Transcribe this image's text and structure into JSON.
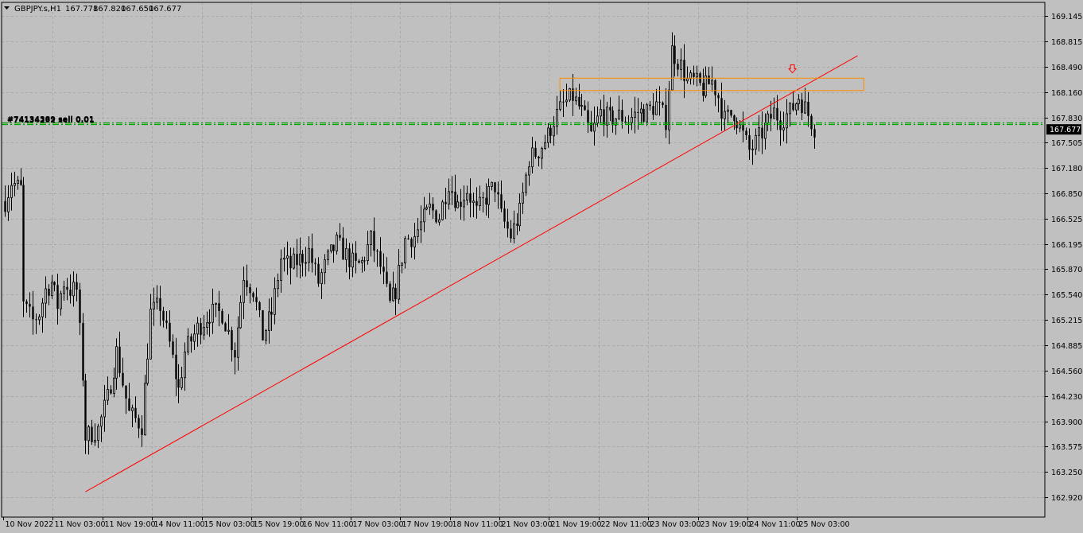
{
  "window": {
    "symbol_title": "GBPJPY.s,H1",
    "ohlc": [
      "167.778",
      "167.820",
      "167.650",
      "167.677"
    ],
    "menu_icon": "triangle-down-icon"
  },
  "colors": {
    "background": "#c0c0c0",
    "grid": "#a8a8a8",
    "candle": "#000000",
    "trendline": "#ff0000",
    "zone": "#ff8c00",
    "order_line": "#00a000",
    "arrow": "#ff0000",
    "price_tag_bg": "#000000",
    "price_tag_text": "#ffffff"
  },
  "chart_data": {
    "type": "candlestick",
    "title": "GBPJPY.s,H1",
    "timeframe": "H1",
    "ylim": [
      162.8,
      169.3
    ],
    "y_ticks": [
      "169.145",
      "168.815",
      "168.490",
      "168.160",
      "167.830",
      "167.505",
      "167.180",
      "166.850",
      "166.525",
      "166.195",
      "165.870",
      "165.540",
      "165.215",
      "164.885",
      "164.560",
      "164.230",
      "163.900",
      "163.575",
      "163.250",
      "162.920"
    ],
    "x_ticks": [
      "10 Nov 2022",
      "11 Nov 03:00",
      "11 Nov 19:00",
      "14 Nov 11:00",
      "15 Nov 03:00",
      "15 Nov 19:00",
      "16 Nov 11:00",
      "17 Nov 03:00",
      "17 Nov 19:00",
      "18 Nov 11:00",
      "21 Nov 03:00",
      "21 Nov 19:00",
      "22 Nov 11:00",
      "23 Nov 03:00",
      "23 Nov 19:00",
      "24 Nov 11:00",
      "25 Nov 03:00"
    ],
    "bar_count": 262,
    "current_price": "167.677",
    "current_price_value": 167.677,
    "series": [
      {
        "name": "price path (approx closes)",
        "anchor_bar_close": [
          [
            0,
            166.75
          ],
          [
            2,
            167.0
          ],
          [
            5,
            166.9
          ],
          [
            6,
            165.4
          ],
          [
            9,
            165.2
          ],
          [
            11,
            165.3
          ],
          [
            13,
            165.6
          ],
          [
            15,
            165.7
          ],
          [
            17,
            165.4
          ],
          [
            19,
            165.7
          ],
          [
            21,
            165.6
          ],
          [
            23,
            165.6
          ],
          [
            25,
            164.5
          ],
          [
            26,
            163.7
          ],
          [
            30,
            163.8
          ],
          [
            33,
            164.2
          ],
          [
            36,
            164.8
          ],
          [
            40,
            164.0
          ],
          [
            44,
            163.85
          ],
          [
            47,
            165.3
          ],
          [
            50,
            165.4
          ],
          [
            53,
            164.9
          ],
          [
            56,
            164.3
          ],
          [
            58,
            164.8
          ],
          [
            62,
            165.1
          ],
          [
            66,
            165.3
          ],
          [
            70,
            165.3
          ],
          [
            74,
            164.8
          ],
          [
            77,
            165.8
          ],
          [
            80,
            165.6
          ],
          [
            83,
            165.0
          ],
          [
            86,
            165.3
          ],
          [
            89,
            166.0
          ],
          [
            92,
            165.9
          ],
          [
            95,
            166.0
          ],
          [
            98,
            166.1
          ],
          [
            101,
            165.7
          ],
          [
            104,
            166.0
          ],
          [
            107,
            166.2
          ],
          [
            110,
            166.05
          ],
          [
            113,
            165.9
          ],
          [
            115,
            165.95
          ],
          [
            118,
            166.25
          ],
          [
            121,
            165.9
          ],
          [
            124,
            165.4
          ],
          [
            126,
            165.6
          ],
          [
            129,
            166.25
          ],
          [
            132,
            166.3
          ],
          [
            134,
            166.45
          ],
          [
            137,
            166.65
          ],
          [
            140,
            166.55
          ],
          [
            143,
            167.0
          ],
          [
            146,
            166.7
          ],
          [
            149,
            166.9
          ],
          [
            152,
            166.6
          ],
          [
            155,
            166.8
          ],
          [
            158,
            166.95
          ],
          [
            160,
            166.55
          ],
          [
            163,
            166.3
          ],
          [
            166,
            166.6
          ],
          [
            169,
            167.3
          ],
          [
            172,
            167.4
          ],
          [
            175,
            167.6
          ],
          [
            177,
            167.8
          ],
          [
            180,
            168.0
          ],
          [
            183,
            168.1
          ],
          [
            186,
            167.9
          ],
          [
            189,
            167.6
          ],
          [
            192,
            167.9
          ],
          [
            195,
            167.8
          ],
          [
            198,
            167.85
          ],
          [
            201,
            167.8
          ],
          [
            204,
            167.9
          ],
          [
            207,
            167.9
          ],
          [
            210,
            168.0
          ],
          [
            213,
            167.8
          ],
          [
            215,
            168.7
          ],
          [
            218,
            168.5
          ],
          [
            220,
            168.3
          ],
          [
            222,
            168.3
          ],
          [
            225,
            168.2
          ],
          [
            228,
            168.3
          ],
          [
            230,
            168.1
          ],
          [
            232,
            167.8
          ],
          [
            235,
            167.9
          ],
          [
            238,
            167.6
          ],
          [
            240,
            167.4
          ],
          [
            242,
            167.5
          ],
          [
            245,
            167.7
          ],
          [
            248,
            167.9
          ],
          [
            250,
            167.8
          ],
          [
            253,
            167.9
          ],
          [
            256,
            168.1
          ],
          [
            258,
            167.95
          ],
          [
            261,
            167.7
          ]
        ]
      }
    ],
    "annotations": [
      {
        "type": "trendline",
        "from": {
          "bar": 26,
          "price": 162.99
        },
        "to": {
          "bar": 275,
          "price": 168.63
        },
        "color": "#ff0000"
      },
      {
        "type": "rectangle",
        "price_top": 168.34,
        "price_bottom": 168.18,
        "bar_start": 179,
        "bar_end": 277,
        "color": "#ff8c00"
      },
      {
        "type": "arrow",
        "direction": "down",
        "bar": 254,
        "price": 168.45,
        "icon": "down-arrow-icon"
      },
      {
        "type": "horizontal_line",
        "price": 167.77,
        "style": "dash-dot",
        "color": "#00a000"
      },
      {
        "type": "horizontal_line",
        "price": 167.745,
        "style": "dash-dot",
        "color": "#00a000"
      }
    ],
    "order_labels": [
      "#74134389 sell 0.01",
      "#74134292 sell 0.01"
    ]
  }
}
